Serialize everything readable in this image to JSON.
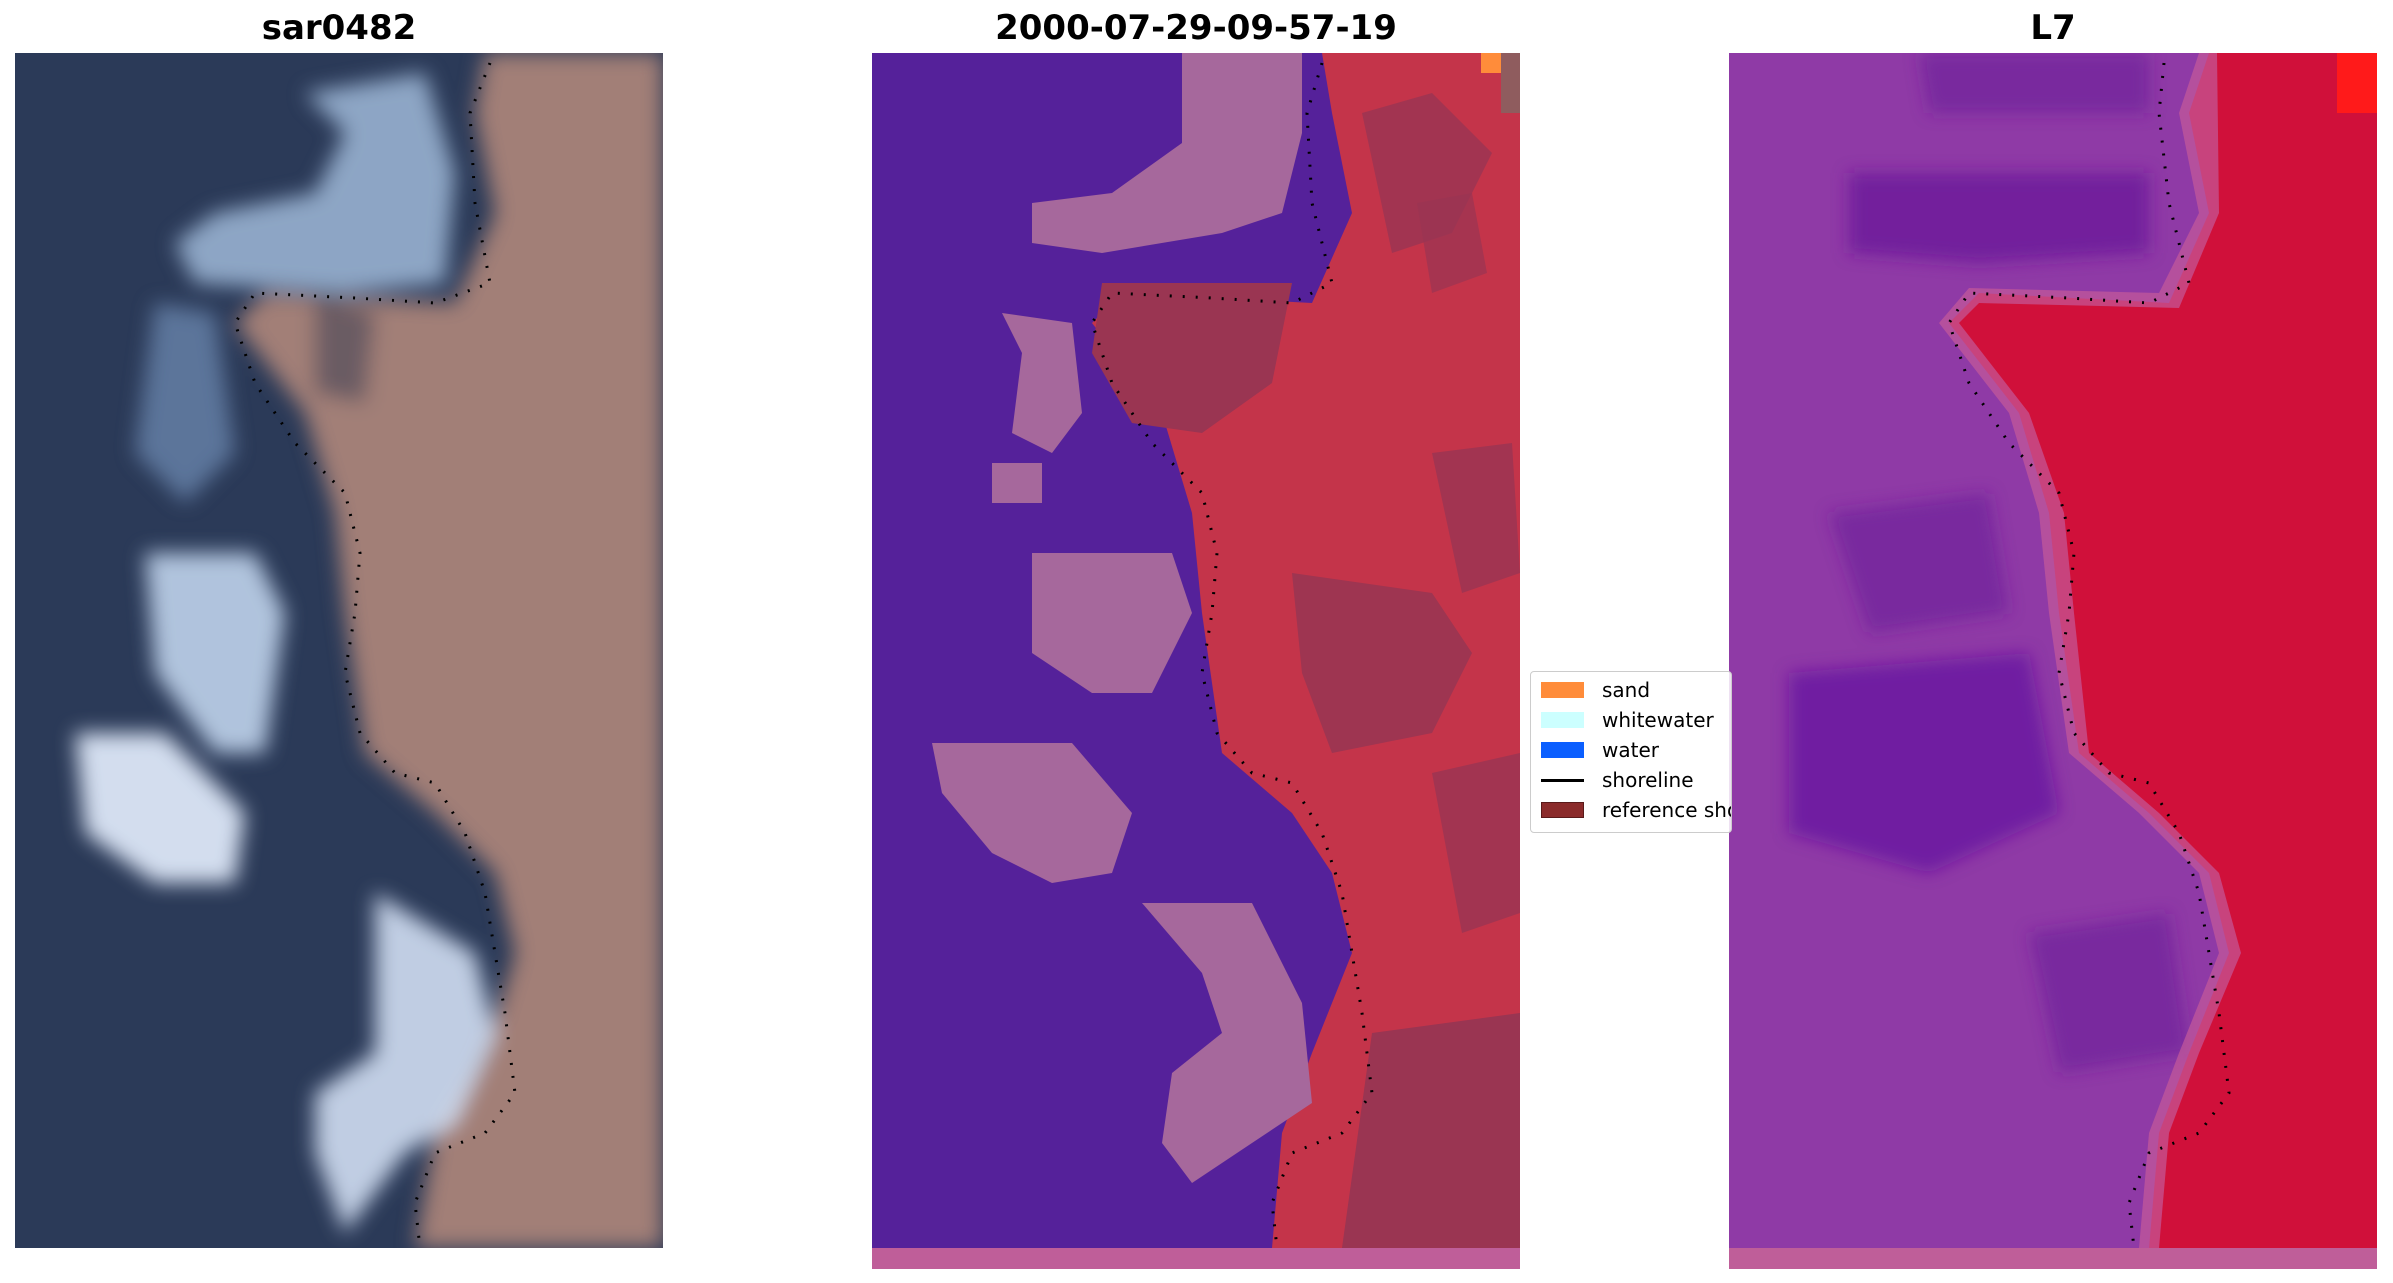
{
  "panels": [
    {
      "title": "sar0482"
    },
    {
      "title": "2000-07-29-09-57-19"
    },
    {
      "title": "L7"
    }
  ],
  "legend": {
    "items": [
      {
        "label": "sand",
        "color": "#ff8c3a",
        "kind": "patch"
      },
      {
        "label": "whitewater",
        "color": "#ccffff",
        "kind": "patch"
      },
      {
        "label": "water",
        "color": "#0b5fff",
        "kind": "patch"
      },
      {
        "label": "shoreline",
        "color": "#000000",
        "kind": "line"
      },
      {
        "label": "reference shoreline",
        "color": "#8b2b2b",
        "kind": "patch"
      }
    ]
  },
  "colors": {
    "deep_water": "#2a3a5c",
    "land": "#a48078",
    "whitewater": "#e8f2ff",
    "class_water": "#55219a",
    "class_whitewater": "#a6689c",
    "class_land": "#c4344a",
    "class_land_dark": "#9a3552",
    "index_water": "#7a2aa6",
    "index_land": "#d0103a"
  }
}
